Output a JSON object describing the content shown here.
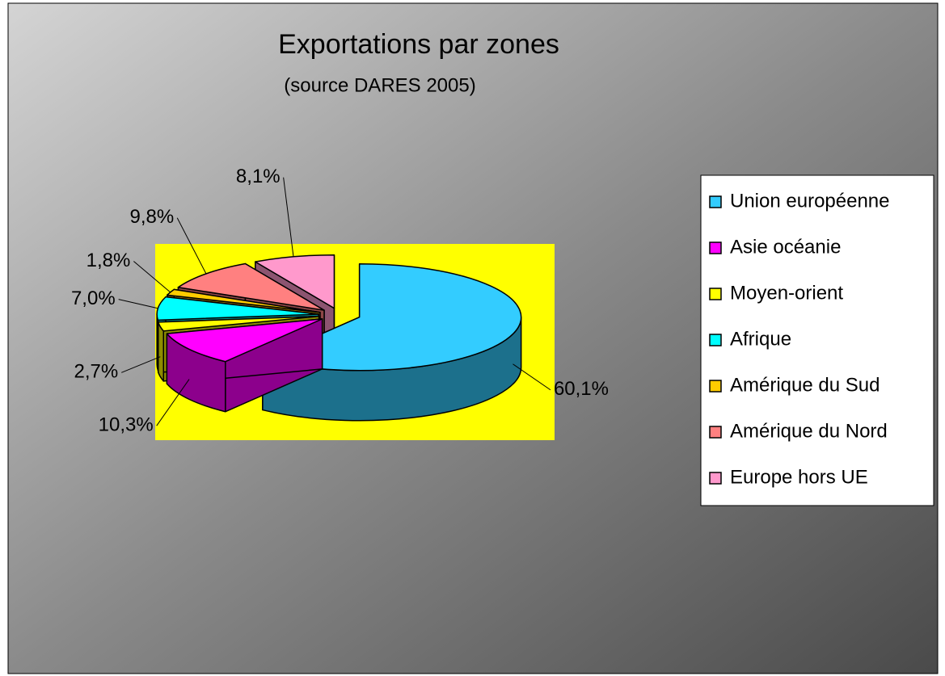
{
  "chart_data": {
    "type": "pie3d",
    "title": "Exportations par zones",
    "subtitle": "(source DARES 2005)",
    "categories": [
      "Union européenne",
      "Asie océanie",
      "Moyen-orient",
      "Afrique",
      "Amérique du Sud",
      "Amérique du Nord",
      "Europe hors UE"
    ],
    "values": [
      60.1,
      10.3,
      2.7,
      7.0,
      1.8,
      9.8,
      8.1
    ],
    "value_labels": [
      "60,1%",
      "10,3%",
      "2,7%",
      "7,0%",
      "1,8%",
      "9,8%",
      "8,1%"
    ],
    "colors": [
      "#33ccff",
      "#ff00ff",
      "#ffff00",
      "#00ffff",
      "#ffcc00",
      "#ff8080",
      "#ff99cc"
    ],
    "legend": "right"
  }
}
